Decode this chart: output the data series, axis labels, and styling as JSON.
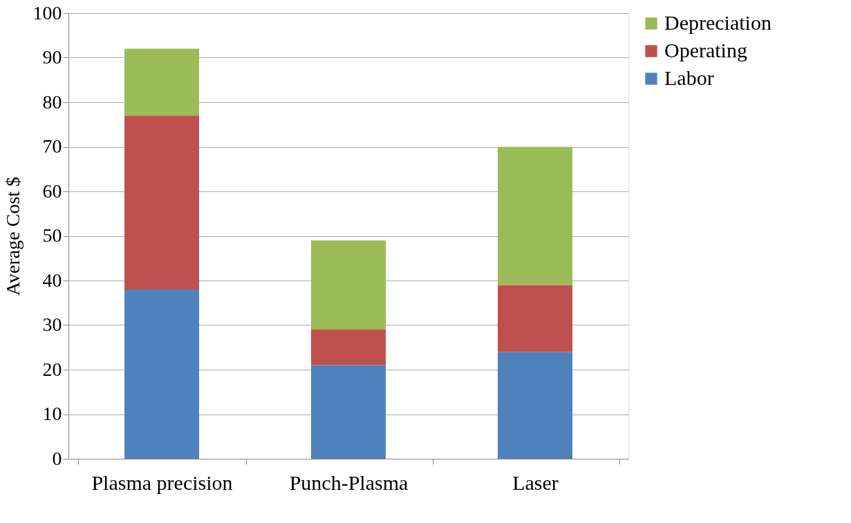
{
  "chart_data": {
    "type": "bar",
    "stacked": true,
    "ylabel": "Average Cost $",
    "categories": [
      "Plasma precision",
      "Punch-Plasma",
      "Laser"
    ],
    "series": [
      {
        "name": "Labor",
        "color": "#4f81bd",
        "values": [
          38,
          21,
          24
        ]
      },
      {
        "name": "Operating",
        "color": "#c0504d",
        "values": [
          39,
          8,
          15
        ]
      },
      {
        "name": "Depreciation",
        "color": "#9bbb59",
        "values": [
          15,
          20,
          31
        ]
      }
    ],
    "ylim": [
      0,
      100
    ],
    "yticks": [
      0,
      10,
      20,
      30,
      40,
      50,
      60,
      70,
      80,
      90,
      100
    ],
    "grid": "y",
    "legend": "right"
  }
}
